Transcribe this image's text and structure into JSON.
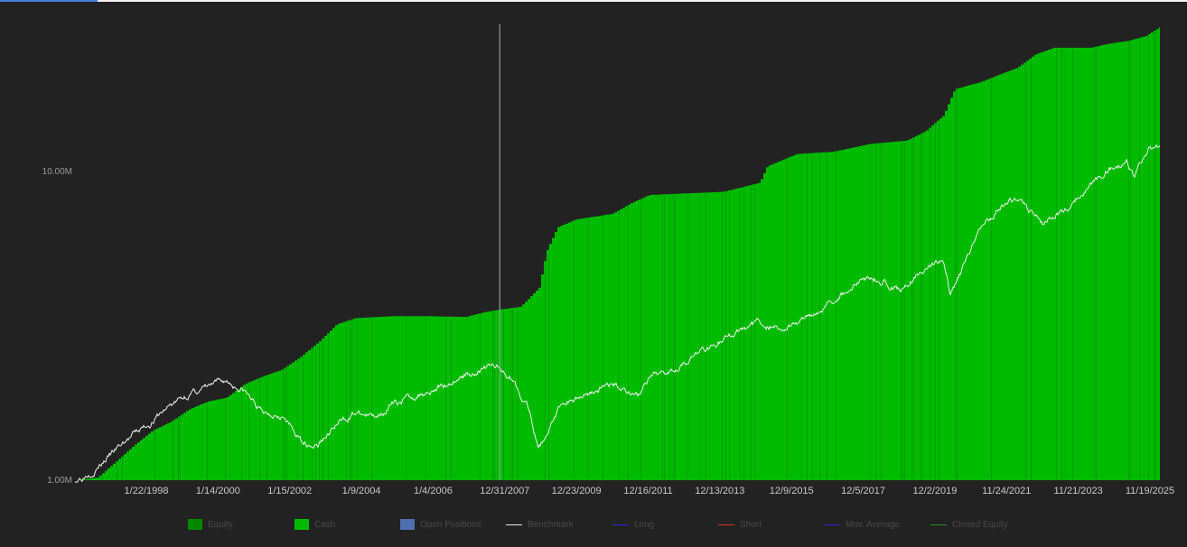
{
  "chart_data": {
    "type": "area",
    "y_scale": "log",
    "ylim": [
      1000000,
      30000000
    ],
    "y_ticks": [
      {
        "value": 1000000,
        "label": "1.00M"
      },
      {
        "value": 10000000,
        "label": "10.00M"
      }
    ],
    "x_tick_labels": [
      "1/22/1998",
      "1/14/2000",
      "1/15/2002",
      "1/9/2004",
      "1/4/2006",
      "12/31/2007",
      "12/23/2009",
      "12/16/2011",
      "12/13/2013",
      "12/9/2015",
      "12/5/2017",
      "12/2/2019",
      "11/24/2021",
      "11/21/2023",
      "11/19/2025"
    ],
    "x_range_years": [
      1996.4,
      2025.9
    ],
    "cursor_x_year": 2007.95,
    "grid": false,
    "legend_position": "bottom",
    "series": [
      {
        "name": "Cash",
        "kind": "area",
        "color": "#00bb00",
        "points": [
          [
            1996.4,
            1000000
          ],
          [
            1997.0,
            1020000
          ],
          [
            1997.5,
            1150000
          ],
          [
            1998.0,
            1300000
          ],
          [
            1998.5,
            1450000
          ],
          [
            1999.0,
            1550000
          ],
          [
            1999.5,
            1700000
          ],
          [
            2000.0,
            1800000
          ],
          [
            2000.5,
            1850000
          ],
          [
            2001.0,
            2050000
          ],
          [
            2001.4,
            2150000
          ],
          [
            2002.0,
            2280000
          ],
          [
            2002.5,
            2500000
          ],
          [
            2003.0,
            2800000
          ],
          [
            2003.5,
            3200000
          ],
          [
            2004.0,
            3350000
          ],
          [
            2005.0,
            3400000
          ],
          [
            2006.0,
            3400000
          ],
          [
            2007.0,
            3380000
          ],
          [
            2007.5,
            3500000
          ],
          [
            2008.0,
            3580000
          ],
          [
            2008.5,
            3650000
          ],
          [
            2009.0,
            4200000
          ],
          [
            2009.2,
            5500000
          ],
          [
            2009.5,
            6600000
          ],
          [
            2010.0,
            7000000
          ],
          [
            2011.0,
            7300000
          ],
          [
            2011.5,
            7900000
          ],
          [
            2012.0,
            8400000
          ],
          [
            2013.0,
            8500000
          ],
          [
            2014.0,
            8600000
          ],
          [
            2015.0,
            9200000
          ],
          [
            2015.2,
            10400000
          ],
          [
            2016.0,
            11400000
          ],
          [
            2017.0,
            11600000
          ],
          [
            2018.0,
            12300000
          ],
          [
            2019.0,
            12600000
          ],
          [
            2019.5,
            13500000
          ],
          [
            2020.0,
            15200000
          ],
          [
            2020.3,
            18500000
          ],
          [
            2021.0,
            19500000
          ],
          [
            2021.5,
            20600000
          ],
          [
            2022.0,
            21700000
          ],
          [
            2022.5,
            24000000
          ],
          [
            2023.0,
            25200000
          ],
          [
            2023.5,
            25200000
          ],
          [
            2024.0,
            25200000
          ],
          [
            2024.5,
            26000000
          ],
          [
            2025.0,
            26500000
          ],
          [
            2025.5,
            27500000
          ],
          [
            2025.9,
            29500000
          ]
        ]
      },
      {
        "name": "Equity",
        "kind": "bars",
        "color": "#008800"
      },
      {
        "name": "Benchmark",
        "kind": "line",
        "color": "#f0f0f0",
        "points": [
          [
            1996.4,
            1000000
          ],
          [
            1997.0,
            1100000
          ],
          [
            1997.5,
            1250000
          ],
          [
            1998.0,
            1400000
          ],
          [
            1998.5,
            1550000
          ],
          [
            1999.0,
            1750000
          ],
          [
            1999.5,
            1900000
          ],
          [
            2000.0,
            2000000
          ],
          [
            2000.5,
            2100000
          ],
          [
            2001.0,
            1950000
          ],
          [
            2001.5,
            1650000
          ],
          [
            2002.0,
            1650000
          ],
          [
            2002.5,
            1350000
          ],
          [
            2003.0,
            1300000
          ],
          [
            2003.5,
            1500000
          ],
          [
            2004.0,
            1650000
          ],
          [
            2004.5,
            1600000
          ],
          [
            2005.0,
            1750000
          ],
          [
            2006.0,
            1950000
          ],
          [
            2006.5,
            2050000
          ],
          [
            2007.0,
            2200000
          ],
          [
            2007.8,
            2350000
          ],
          [
            2008.3,
            2150000
          ],
          [
            2008.7,
            1750000
          ],
          [
            2009.0,
            1250000
          ],
          [
            2009.2,
            1400000
          ],
          [
            2009.6,
            1750000
          ],
          [
            2010.0,
            1850000
          ],
          [
            2011.0,
            2050000
          ],
          [
            2011.7,
            1900000
          ],
          [
            2012.0,
            2100000
          ],
          [
            2013.0,
            2450000
          ],
          [
            2014.0,
            2850000
          ],
          [
            2015.0,
            3250000
          ],
          [
            2015.6,
            3100000
          ],
          [
            2016.0,
            3200000
          ],
          [
            2017.0,
            3850000
          ],
          [
            2018.0,
            4600000
          ],
          [
            2018.9,
            4150000
          ],
          [
            2019.5,
            4850000
          ],
          [
            2020.0,
            5200000
          ],
          [
            2020.2,
            3900000
          ],
          [
            2020.6,
            5000000
          ],
          [
            2021.0,
            6300000
          ],
          [
            2021.5,
            7700000
          ],
          [
            2022.0,
            8200000
          ],
          [
            2022.7,
            6800000
          ],
          [
            2023.0,
            7200000
          ],
          [
            2023.5,
            7800000
          ],
          [
            2024.0,
            9000000
          ],
          [
            2024.5,
            10200000
          ],
          [
            2025.0,
            10900000
          ],
          [
            2025.2,
            9600000
          ],
          [
            2025.6,
            11900000
          ],
          [
            2025.9,
            12300000
          ]
        ]
      }
    ]
  },
  "legend": [
    {
      "label": "Equity",
      "color": "#008800",
      "swatch": "box"
    },
    {
      "label": "Cash",
      "color": "#00bb00",
      "swatch": "box"
    },
    {
      "label": "Open Positions",
      "color": "#4e6fb0",
      "swatch": "box"
    },
    {
      "label": "Benchmark",
      "color": "#e8e8e8",
      "swatch": "line"
    },
    {
      "label": "Long",
      "color": "#2a2ad8",
      "swatch": "line"
    },
    {
      "label": "Short",
      "color": "#d82a2a",
      "swatch": "line"
    },
    {
      "label": "Mov. Average",
      "color": "#2a2ad8",
      "swatch": "line"
    },
    {
      "label": "Closed Equity",
      "color": "#2a8a2a",
      "swatch": "line"
    }
  ]
}
